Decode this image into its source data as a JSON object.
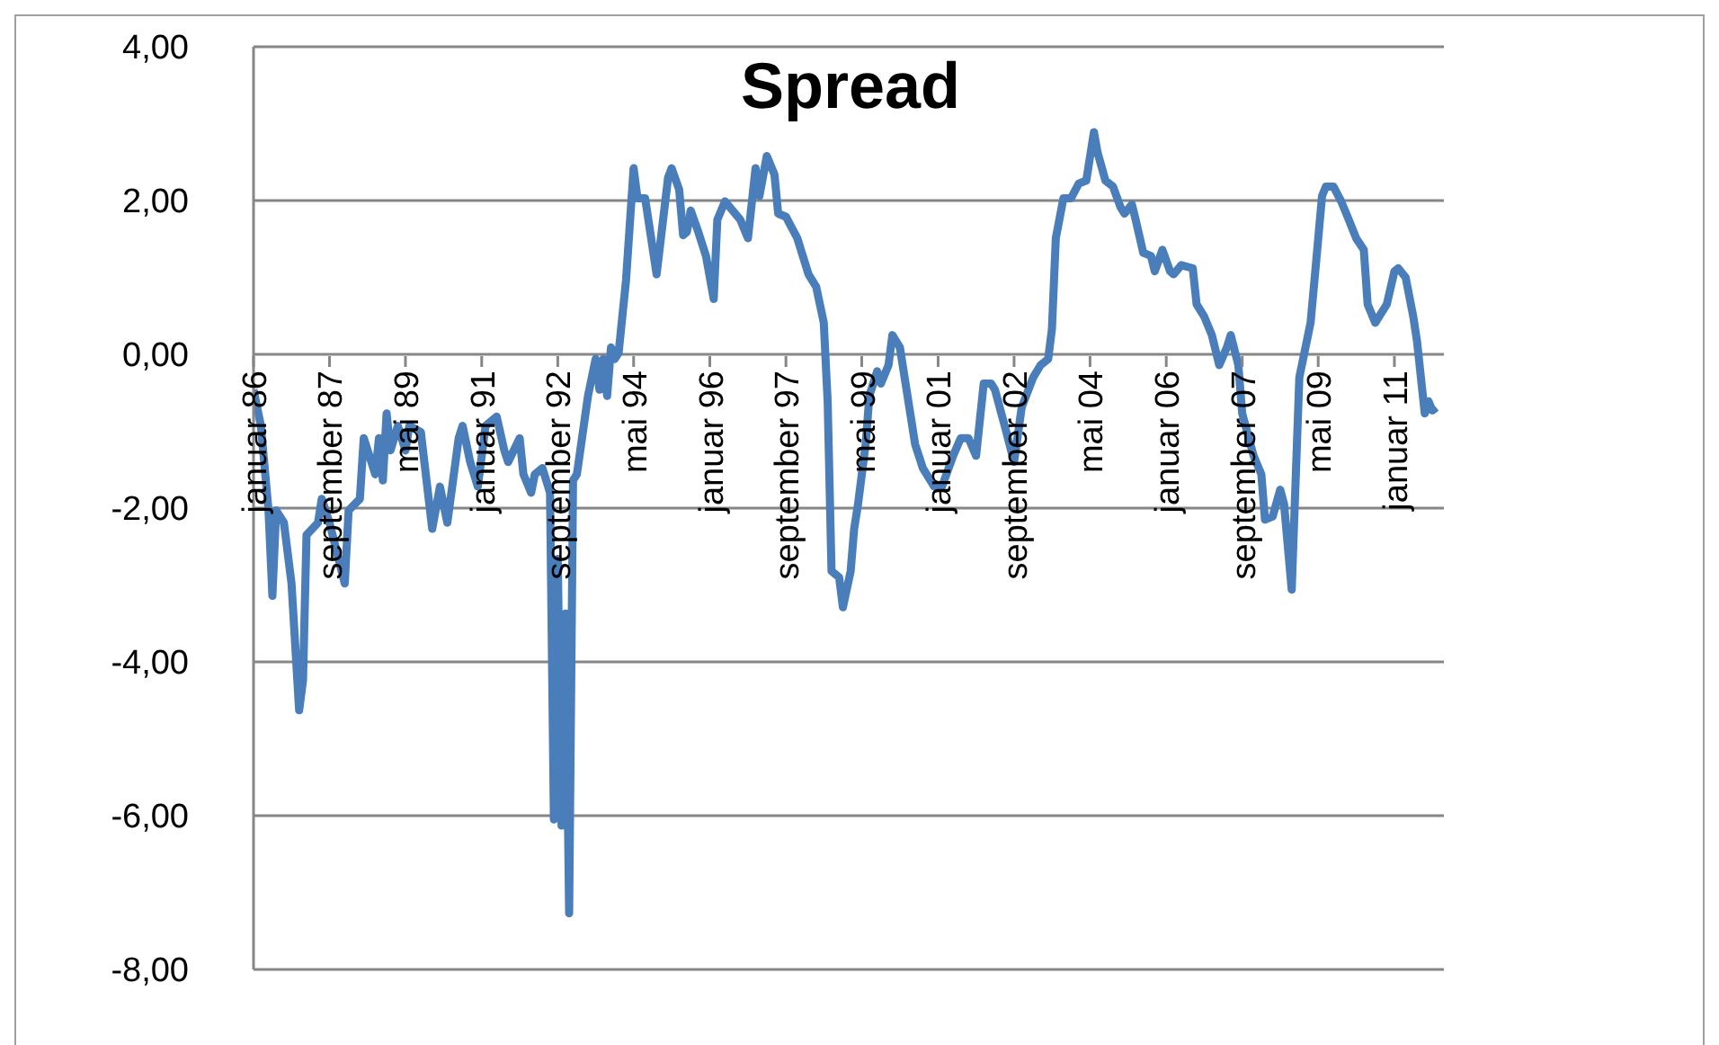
{
  "chart_data": {
    "type": "line",
    "title": "Spread",
    "x": [
      "1986-01",
      "1986-03",
      "1986-05",
      "1986-06",
      "1986-07",
      "1986-09",
      "1986-11",
      "1987-01",
      "1987-02",
      "1987-03",
      "1987-06",
      "1987-07",
      "1987-09",
      "1988-01",
      "1988-02",
      "1988-05",
      "1988-06",
      "1988-08",
      "1988-09",
      "1988-10",
      "1988-11",
      "1988-12",
      "1989-01",
      "1989-03",
      "1989-05",
      "1989-06",
      "1989-09",
      "1989-12",
      "1990-02",
      "1990-04",
      "1990-07",
      "1990-08",
      "1990-10",
      "1990-12",
      "1991-02",
      "1991-05",
      "1991-07",
      "1991-08",
      "1991-11",
      "1991-12",
      "1992-02",
      "1992-03",
      "1992-05",
      "1992-07",
      "1992-08",
      "1992-09",
      "1992-10",
      "1992-11",
      "1992-12",
      "1993-01",
      "1993-02",
      "1993-05",
      "1993-07",
      "1993-08",
      "1993-09",
      "1993-10",
      "1993-11",
      "1993-12",
      "1994-01",
      "1994-03",
      "1994-05",
      "1994-06",
      "1994-08",
      "1994-11",
      "1995-02",
      "1995-03",
      "1995-05",
      "1995-06",
      "1995-07",
      "1995-08",
      "1995-10",
      "1995-12",
      "1996-02",
      "1996-03",
      "1996-05",
      "1996-09",
      "1996-11",
      "1997-01",
      "1997-02",
      "1997-04",
      "1997-06",
      "1997-07",
      "1997-09",
      "1997-12",
      "1998-03",
      "1998-05",
      "1998-07",
      "1998-08",
      "1998-09",
      "1998-11",
      "1998-12",
      "1999-02",
      "1999-03",
      "1999-04",
      "1999-06",
      "1999-07",
      "1999-09",
      "1999-10",
      "1999-12",
      "2000-01",
      "2000-03",
      "2000-05",
      "2000-07",
      "2000-09",
      "2000-12",
      "2001-02",
      "2001-05",
      "2001-07",
      "2001-09",
      "2001-11",
      "2002-01",
      "2002-03",
      "2002-04",
      "2002-07",
      "2002-09",
      "2002-11",
      "2003-02",
      "2003-04",
      "2003-06",
      "2003-07",
      "2003-08",
      "2003-10",
      "2003-12",
      "2004-02",
      "2004-04",
      "2004-06",
      "2004-07",
      "2004-09",
      "2004-11",
      "2005-01",
      "2005-02",
      "2005-04",
      "2005-05",
      "2005-07",
      "2005-09",
      "2005-10",
      "2005-12",
      "2006-02",
      "2006-03",
      "2006-05",
      "2006-08",
      "2006-09",
      "2006-11",
      "2007-01",
      "2007-03",
      "2007-05",
      "2007-06",
      "2007-08",
      "2007-09",
      "2007-12",
      "2008-02",
      "2008-03",
      "2008-05",
      "2008-07",
      "2008-08",
      "2008-10",
      "2008-12",
      "2009-03",
      "2009-04",
      "2009-06",
      "2009-07",
      "2009-09",
      "2009-11",
      "2010-01",
      "2010-03",
      "2010-05",
      "2010-06",
      "2010-08",
      "2010-11",
      "2011-01",
      "2011-02",
      "2011-04",
      "2011-06",
      "2011-07",
      "2011-09",
      "2011-10",
      "2011-11",
      "2011-12"
    ],
    "series": [
      {
        "color": "#4a7ebb",
        "values": [
          -0.46,
          -0.93,
          -2.03,
          -3.14,
          -2.03,
          -2.19,
          -2.98,
          -4.63,
          -4.24,
          -2.35,
          -2.19,
          -1.88,
          -2.19,
          -2.98,
          -2.03,
          -1.88,
          -1.09,
          -1.4,
          -1.56,
          -1.09,
          -1.64,
          -0.77,
          -1.25,
          -0.93,
          -1.25,
          -0.93,
          -1.01,
          -2.27,
          -1.72,
          -2.19,
          -1.09,
          -0.93,
          -1.4,
          -1.72,
          -0.93,
          -0.81,
          -1.25,
          -1.4,
          -1.09,
          -1.56,
          -1.8,
          -1.56,
          -1.48,
          -1.8,
          -6.05,
          -2.66,
          -6.13,
          -3.37,
          -7.27,
          -1.64,
          -1.56,
          -0.54,
          -0.06,
          -0.46,
          -0.06,
          -0.54,
          0.09,
          -0.06,
          0.02,
          0.96,
          2.42,
          2.03,
          2.03,
          1.04,
          2.3,
          2.42,
          2.14,
          1.55,
          1.59,
          1.87,
          1.59,
          1.28,
          0.72,
          1.75,
          1.99,
          1.75,
          1.51,
          2.42,
          2.06,
          2.58,
          2.34,
          1.83,
          1.79,
          1.51,
          1.04,
          0.88,
          0.41,
          -0.61,
          -2.82,
          -2.9,
          -3.29,
          -2.82,
          -2.27,
          -1.95,
          -1.17,
          -0.54,
          -0.22,
          -0.38,
          -0.14,
          0.25,
          0.09,
          -0.54,
          -1.17,
          -1.48,
          -1.72,
          -1.72,
          -1.32,
          -1.09,
          -1.09,
          -1.32,
          -0.38,
          -0.38,
          -0.46,
          -1.01,
          -1.4,
          -0.69,
          -0.3,
          -0.14,
          -0.06,
          0.33,
          1.51,
          2.03,
          2.03,
          2.22,
          2.26,
          2.89,
          2.62,
          2.26,
          2.18,
          1.91,
          1.83,
          1.95,
          1.75,
          1.32,
          1.28,
          1.08,
          1.36,
          1.08,
          1.04,
          1.16,
          1.12,
          0.65,
          0.49,
          0.25,
          -0.14,
          0.09,
          0.25,
          -0.14,
          -0.77,
          -1.32,
          -1.56,
          -2.15,
          -2.11,
          -1.76,
          -1.95,
          -3.06,
          -0.3,
          0.41,
          0.96,
          2.06,
          2.18,
          2.18,
          1.99,
          1.75,
          1.51,
          1.36,
          0.65,
          0.41,
          0.65,
          1.08,
          1.12,
          1.0,
          0.49,
          0.17,
          -0.77,
          -0.61,
          -0.73,
          -0.69
        ]
      }
    ],
    "xlim": [
      "1986-01",
      "2012-02"
    ],
    "xticks": [
      {
        "value": "1986-01",
        "label": "januar 86"
      },
      {
        "value": "1987-09",
        "label": "september 87"
      },
      {
        "value": "1989-05",
        "label": "mai 89"
      },
      {
        "value": "1991-01",
        "label": "januar 91"
      },
      {
        "value": "1992-09",
        "label": "september 92"
      },
      {
        "value": "1994-05",
        "label": "mai 94"
      },
      {
        "value": "1996-01",
        "label": "januar 96"
      },
      {
        "value": "1997-09",
        "label": "september 97"
      },
      {
        "value": "1999-05",
        "label": "mai 99"
      },
      {
        "value": "2001-01",
        "label": "januar 01"
      },
      {
        "value": "2002-09",
        "label": "september 02"
      },
      {
        "value": "2004-05",
        "label": "mai 04"
      },
      {
        "value": "2006-01",
        "label": "januar 06"
      },
      {
        "value": "2007-09",
        "label": "september 07"
      },
      {
        "value": "2009-05",
        "label": "mai 09"
      },
      {
        "value": "2011-01",
        "label": "januar 11"
      }
    ],
    "ylim": [
      -8,
      4
    ],
    "yticks": [
      {
        "value": -8,
        "label": "-8,00"
      },
      {
        "value": -6,
        "label": "-6,00"
      },
      {
        "value": -4,
        "label": "-4,00"
      },
      {
        "value": -2,
        "label": "-2,00"
      },
      {
        "value": 0,
        "label": "0,00"
      },
      {
        "value": 2,
        "label": "2,00"
      },
      {
        "value": 4,
        "label": "4,00"
      }
    ],
    "grid": "y",
    "marker": "none",
    "line_style": "solid"
  }
}
